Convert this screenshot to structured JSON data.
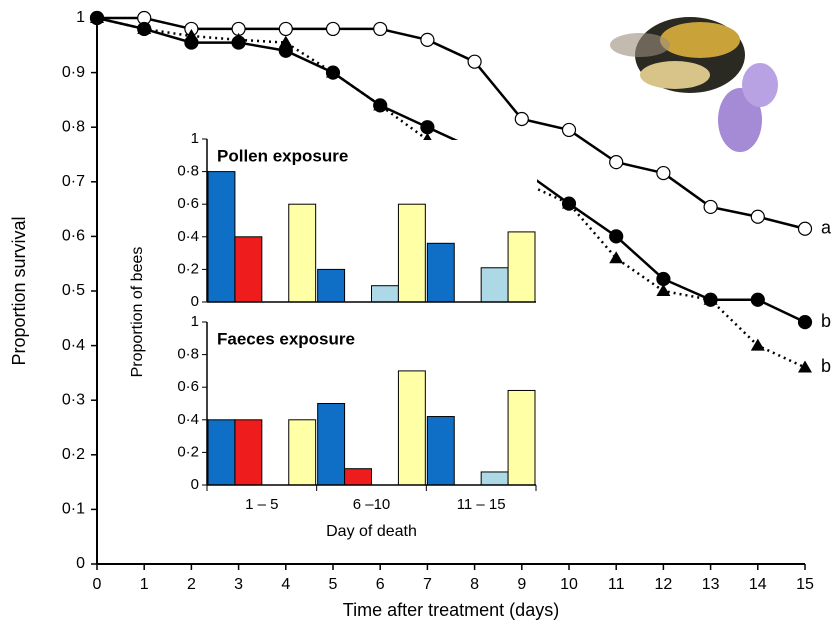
{
  "chart_data": [
    {
      "type": "line",
      "xlabel": "Time after treatment (days)",
      "ylabel": "Proportion survival",
      "x": [
        0,
        1,
        2,
        3,
        4,
        5,
        6,
        7,
        8,
        9,
        10,
        11,
        12,
        13,
        14,
        15
      ],
      "xlim": [
        0,
        15
      ],
      "xticks": [
        0,
        1,
        2,
        3,
        4,
        5,
        6,
        7,
        8,
        9,
        10,
        11,
        12,
        13,
        14,
        15
      ],
      "ylim": [
        0,
        1
      ],
      "yticks": [
        0,
        {
          "value": 0.1,
          "label": "0·1"
        },
        {
          "value": 0.2,
          "label": "0·2"
        },
        {
          "value": 0.3,
          "label": "0·3"
        },
        {
          "value": 0.4,
          "label": "0·4"
        },
        {
          "value": 0.5,
          "label": "0·5"
        },
        {
          "value": 0.6,
          "label": "0·6"
        },
        {
          "value": 0.7,
          "label": "0·7"
        },
        {
          "value": 0.8,
          "label": "0·8"
        },
        {
          "value": 0.9,
          "label": "0·9"
        },
        1
      ],
      "series": [
        {
          "color": "#000000",
          "marker": "circle-open",
          "line_style": "solid",
          "annotation": "a",
          "values": [
            1,
            1,
            0.98,
            0.98,
            0.98,
            0.98,
            0.98,
            0.96,
            0.92,
            0.815,
            0.795,
            0.736,
            0.716,
            0.654,
            0.636,
            0.614
          ]
        },
        {
          "color": "#000000",
          "marker": "circle",
          "line_style": "solid",
          "annotation": "b",
          "values": [
            1,
            0.98,
            0.955,
            0.955,
            0.94,
            0.9,
            0.84,
            0.8,
            0.76,
            0.722,
            0.66,
            0.6,
            0.522,
            0.484,
            0.484,
            0.443
          ]
        },
        {
          "color": "#000000",
          "marker": "triangle",
          "line_style": "dotted",
          "annotation": "b",
          "values": [
            1,
            0.98,
            0.967,
            0.96,
            0.955,
            0.9,
            0.84,
            0.777,
            0.718,
            0.7,
            0.66,
            0.56,
            0.5,
            0.484,
            0.4,
            0.36
          ]
        }
      ]
    },
    {
      "type": "bar",
      "title": "Pollen exposure",
      "ylabel": "Proportion of bees",
      "categories": [
        "1 – 5",
        "6 –10",
        "11 – 15"
      ],
      "ylim": [
        0,
        1
      ],
      "yticks": [
        0,
        {
          "value": 0.2,
          "label": "0·2"
        },
        {
          "value": 0.4,
          "label": "0·4"
        },
        {
          "value": 0.6,
          "label": "0·6"
        },
        {
          "value": 0.8,
          "label": "0·8"
        },
        1
      ],
      "series": [
        {
          "color": "#0f6fc6",
          "values": [
            0.8,
            0.2,
            0.36
          ]
        },
        {
          "color": "#ee1c1c",
          "values": [
            0.4,
            0,
            0
          ]
        },
        {
          "color": "#add8e6",
          "values": [
            0,
            0.1,
            0.21
          ]
        },
        {
          "color": "#ffffa6",
          "values": [
            0.6,
            0.6,
            0.43
          ]
        }
      ]
    },
    {
      "type": "bar",
      "title": "Faeces exposure",
      "xlabel": "Day of death",
      "categories": [
        "1 – 5",
        "6 –10",
        "11 – 15"
      ],
      "ylim": [
        0,
        1
      ],
      "yticks": [
        0,
        {
          "value": 0.2,
          "label": "0·2"
        },
        {
          "value": 0.4,
          "label": "0·4"
        },
        {
          "value": 0.6,
          "label": "0·6"
        },
        {
          "value": 0.8,
          "label": "0·8"
        },
        1
      ],
      "series": [
        {
          "color": "#0f6fc6",
          "values": [
            0.4,
            0.5,
            0.42
          ]
        },
        {
          "color": "#ee1c1c",
          "values": [
            0.4,
            0.1,
            0
          ]
        },
        {
          "color": "#add8e6",
          "values": [
            0,
            0,
            0.08
          ]
        },
        {
          "color": "#ffffa6",
          "values": [
            0.4,
            0.7,
            0.58
          ]
        }
      ]
    }
  ]
}
